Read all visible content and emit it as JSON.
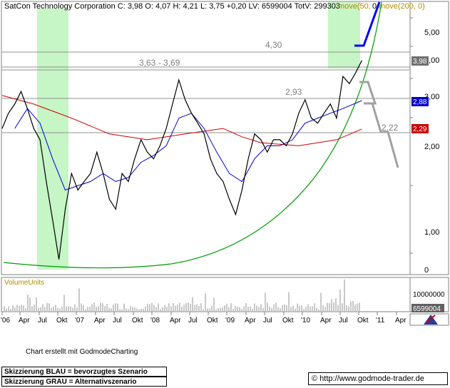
{
  "header": {
    "title": "SatCon Technology Corporation C: 3,98 O: 4,07 H: 4,21 L: 3,75 +0,20 LV: 6599004 TotV: 299303",
    "ma_labels": [
      "move(50,",
      "move(200, 0)"
    ],
    "ma_partial_digit": "0"
  },
  "footer": {
    "credit": "Chart erstellt mit GodmodeCharting",
    "legend_blue": "Skizzierung BLAU = bevorzugtes Szenario",
    "legend_grey": "Skizzierung GRAU = Alternativszenario",
    "url": "© http://www.godmode-trader.de"
  },
  "colors": {
    "price": "#000000",
    "ma50": "#0000cc",
    "ma200": "#cc0000",
    "trendline": "#009900",
    "highlight": "#c6f5c6",
    "scenario_blue": "#0000ff",
    "scenario_grey": "#a0a0a0",
    "volume": "#909090",
    "label_gold": "#b08c00"
  },
  "chart_data": {
    "type": "line",
    "price_axis": {
      "scale": "log",
      "ticks": [
        "5,00",
        "4,00",
        "3,00",
        "2,00",
        "1,00",
        "0"
      ]
    },
    "price_tags": [
      {
        "text": "3,98",
        "color": "#707070"
      },
      {
        "text": "2,88",
        "color": "#0000cc"
      },
      {
        "text": "2,29",
        "color": "#cc0000"
      }
    ],
    "levels": [
      {
        "label": "4,30",
        "value": 4.3
      },
      {
        "label": "3,63 - 3,69",
        "value": 3.66
      },
      {
        "label": "2,93",
        "value": 2.93
      },
      {
        "label": "2,22",
        "value": 2.22
      }
    ],
    "time_axis": [
      "'06",
      "Apr",
      "Jul",
      "Okt",
      "'07",
      "Apr",
      "Jul",
      "Okt",
      "'08",
      "Apr",
      "Jul",
      "Okt",
      "'09",
      "Apr",
      "Jul",
      "Okt",
      "'10",
      "Apr",
      "Jul",
      "Okt",
      "'11",
      "Apr"
    ],
    "start_month": "2006-01",
    "end_month": "2011-05",
    "price_series": [
      {
        "date": "2006-01",
        "value": 2.3
      },
      {
        "date": "2006-02",
        "value": 2.6
      },
      {
        "date": "2006-03",
        "value": 2.8
      },
      {
        "date": "2006-04",
        "value": 3.1
      },
      {
        "date": "2006-05",
        "value": 2.7
      },
      {
        "date": "2006-06",
        "value": 2.3
      },
      {
        "date": "2006-07",
        "value": 2.1
      },
      {
        "date": "2006-08",
        "value": 1.5
      },
      {
        "date": "2006-09",
        "value": 1.1
      },
      {
        "date": "2006-10",
        "value": 0.8
      },
      {
        "date": "2006-11",
        "value": 1.2
      },
      {
        "date": "2006-12",
        "value": 1.6
      },
      {
        "date": "2007-01",
        "value": 1.4
      },
      {
        "date": "2007-02",
        "value": 1.5
      },
      {
        "date": "2007-03",
        "value": 1.6
      },
      {
        "date": "2007-04",
        "value": 1.9
      },
      {
        "date": "2007-05",
        "value": 1.6
      },
      {
        "date": "2007-06",
        "value": 1.3
      },
      {
        "date": "2007-07",
        "value": 1.2
      },
      {
        "date": "2007-08",
        "value": 1.6
      },
      {
        "date": "2007-09",
        "value": 1.5
      },
      {
        "date": "2007-10",
        "value": 1.8
      },
      {
        "date": "2007-11",
        "value": 2.1
      },
      {
        "date": "2007-12",
        "value": 1.9
      },
      {
        "date": "2008-01",
        "value": 1.8
      },
      {
        "date": "2008-02",
        "value": 2.0
      },
      {
        "date": "2008-03",
        "value": 2.3
      },
      {
        "date": "2008-04",
        "value": 2.8
      },
      {
        "date": "2008-05",
        "value": 3.4
      },
      {
        "date": "2008-06",
        "value": 2.9
      },
      {
        "date": "2008-07",
        "value": 2.6
      },
      {
        "date": "2008-08",
        "value": 2.4
      },
      {
        "date": "2008-09",
        "value": 2.2
      },
      {
        "date": "2008-10",
        "value": 1.8
      },
      {
        "date": "2008-11",
        "value": 1.6
      },
      {
        "date": "2008-12",
        "value": 1.5
      },
      {
        "date": "2009-01",
        "value": 1.3
      },
      {
        "date": "2009-02",
        "value": 1.15
      },
      {
        "date": "2009-03",
        "value": 1.4
      },
      {
        "date": "2009-04",
        "value": 1.8
      },
      {
        "date": "2009-05",
        "value": 2.2
      },
      {
        "date": "2009-06",
        "value": 2.1
      },
      {
        "date": "2009-07",
        "value": 1.9
      },
      {
        "date": "2009-08",
        "value": 2.1
      },
      {
        "date": "2009-09",
        "value": 2.1
      },
      {
        "date": "2009-10",
        "value": 2.0
      },
      {
        "date": "2009-11",
        "value": 2.2
      },
      {
        "date": "2009-12",
        "value": 2.6
      },
      {
        "date": "2010-01",
        "value": 2.9
      },
      {
        "date": "2010-02",
        "value": 2.5
      },
      {
        "date": "2010-03",
        "value": 2.4
      },
      {
        "date": "2010-04",
        "value": 2.6
      },
      {
        "date": "2010-05",
        "value": 2.8
      },
      {
        "date": "2010-06",
        "value": 2.5
      },
      {
        "date": "2010-07",
        "value": 3.5
      },
      {
        "date": "2010-08",
        "value": 3.3
      },
      {
        "date": "2010-09",
        "value": 3.6
      },
      {
        "date": "2010-10",
        "value": 3.98
      }
    ],
    "ma50_series": [
      {
        "date": "2006-03",
        "value": 2.3
      },
      {
        "date": "2006-05",
        "value": 2.7
      },
      {
        "date": "2006-07",
        "value": 2.4
      },
      {
        "date": "2006-09",
        "value": 1.8
      },
      {
        "date": "2006-11",
        "value": 1.4
      },
      {
        "date": "2007-01",
        "value": 1.45
      },
      {
        "date": "2007-03",
        "value": 1.5
      },
      {
        "date": "2007-05",
        "value": 1.6
      },
      {
        "date": "2007-07",
        "value": 1.5
      },
      {
        "date": "2007-09",
        "value": 1.55
      },
      {
        "date": "2007-11",
        "value": 1.75
      },
      {
        "date": "2008-01",
        "value": 1.85
      },
      {
        "date": "2008-03",
        "value": 2.0
      },
      {
        "date": "2008-05",
        "value": 2.5
      },
      {
        "date": "2008-07",
        "value": 2.6
      },
      {
        "date": "2008-09",
        "value": 2.3
      },
      {
        "date": "2008-11",
        "value": 1.9
      },
      {
        "date": "2009-01",
        "value": 1.6
      },
      {
        "date": "2009-03",
        "value": 1.5
      },
      {
        "date": "2009-05",
        "value": 1.8
      },
      {
        "date": "2009-07",
        "value": 2.0
      },
      {
        "date": "2009-09",
        "value": 2.0
      },
      {
        "date": "2009-11",
        "value": 2.1
      },
      {
        "date": "2010-01",
        "value": 2.4
      },
      {
        "date": "2010-03",
        "value": 2.5
      },
      {
        "date": "2010-05",
        "value": 2.6
      },
      {
        "date": "2010-07",
        "value": 2.7
      },
      {
        "date": "2010-10",
        "value": 2.88
      }
    ],
    "ma200_series": [
      {
        "date": "2006-01",
        "value": 3.0
      },
      {
        "date": "2006-06",
        "value": 2.8
      },
      {
        "date": "2006-12",
        "value": 2.5
      },
      {
        "date": "2007-06",
        "value": 2.2
      },
      {
        "date": "2007-12",
        "value": 2.1
      },
      {
        "date": "2008-06",
        "value": 2.2
      },
      {
        "date": "2008-12",
        "value": 2.3
      },
      {
        "date": "2009-03",
        "value": 2.15
      },
      {
        "date": "2009-06",
        "value": 2.05
      },
      {
        "date": "2009-12",
        "value": 2.0
      },
      {
        "date": "2010-06",
        "value": 2.1
      },
      {
        "date": "2010-10",
        "value": 2.29
      }
    ],
    "volume_axis": {
      "ticks": [
        "10000000",
        "6599004"
      ]
    },
    "last_volume": 6599004
  }
}
